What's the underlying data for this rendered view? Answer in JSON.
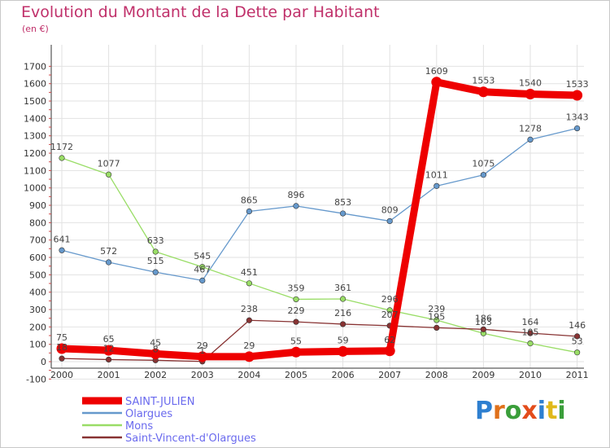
{
  "title": "Evolution du Montant de la Dette par Habitant",
  "unit": "(en €)",
  "logo": {
    "text": "Proxiti",
    "colors": [
      "#2e7fd0",
      "#e0711b",
      "#3a9e3a",
      "#e34c1b",
      "#2e7fd0",
      "#e0b91b",
      "#3a9e3a"
    ]
  },
  "chart_data": {
    "type": "line",
    "x": [
      "2000",
      "2001",
      "2002",
      "2003",
      "2004",
      "2005",
      "2006",
      "2007",
      "2008",
      "2009",
      "2010",
      "2011"
    ],
    "ylim": [
      -100,
      1700
    ],
    "yticks": [
      "-100",
      "0",
      "100",
      "200",
      "300",
      "400",
      "500",
      "600",
      "700",
      "800",
      "900",
      "1000",
      "1100",
      "1200",
      "1300",
      "1400",
      "1500",
      "1600",
      "1700"
    ],
    "grid": true,
    "legend_position": "bottom-left",
    "series": [
      {
        "name": "SAINT-JULIEN",
        "color": "#ee0000",
        "values": [
          75,
          65,
          45,
          29,
          29,
          55,
          59,
          62,
          1609,
          1553,
          1540,
          1533
        ],
        "labels": [
          "75",
          "65",
          "45",
          "29",
          "29",
          "55",
          "59",
          "62",
          "1609",
          "1553",
          "1540",
          "1533"
        ]
      },
      {
        "name": "Olargues",
        "color": "#6699cc",
        "values": [
          641,
          572,
          515,
          467,
          865,
          896,
          853,
          809,
          1011,
          1075,
          1278,
          1343
        ],
        "labels": [
          "641",
          "572",
          "515",
          "467",
          "865",
          "896",
          "853",
          "809",
          "1011",
          "1075",
          "1278",
          "1343"
        ]
      },
      {
        "name": "Mons",
        "color": "#99dd66",
        "values": [
          1172,
          1077,
          633,
          545,
          451,
          359,
          361,
          296,
          239,
          163,
          105,
          53
        ],
        "labels": [
          "1172",
          "1077",
          "633",
          "545",
          "451",
          "359",
          "361",
          "296",
          "239",
          "163",
          "105",
          "53"
        ]
      },
      {
        "name": "Saint-Vincent-d'Olargues",
        "color": "#883333",
        "values": [
          18,
          12,
          8,
          1,
          238,
          229,
          216,
          207,
          195,
          186,
          164,
          146
        ],
        "labels": [
          "18",
          "12",
          "8",
          "1",
          "238",
          "229",
          "216",
          "207",
          "195",
          "186",
          "164",
          "146"
        ]
      }
    ]
  }
}
